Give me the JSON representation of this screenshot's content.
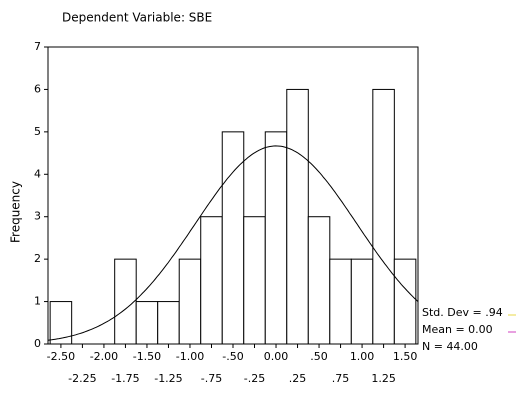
{
  "chart_data": {
    "type": "histogram",
    "title": "Dependent Variable: SBE",
    "ylabel": "Frequency",
    "bins": [
      -2.625,
      -2.375,
      -2.125,
      -1.875,
      -1.625,
      -1.375,
      -1.125,
      -0.875,
      -0.625,
      -0.375,
      -0.125,
      0.125,
      0.375,
      0.625,
      0.875,
      1.125,
      1.375,
      1.625
    ],
    "values": [
      1,
      0,
      0,
      2,
      1,
      1,
      2,
      3,
      5,
      3,
      5,
      6,
      3,
      2,
      2,
      6,
      2
    ],
    "color": "#ffffff",
    "xlim": [
      -2.65,
      1.65
    ],
    "ylim": [
      0,
      7
    ],
    "xticks": [
      {
        "value": -2.5,
        "label": "-2.50"
      },
      {
        "value": -2.25,
        "label": "-2.25"
      },
      {
        "value": -2.0,
        "label": "-2.00"
      },
      {
        "value": -1.75,
        "label": "-1.75"
      },
      {
        "value": -1.5,
        "label": "-1.50"
      },
      {
        "value": -1.25,
        "label": "-1.25"
      },
      {
        "value": -1.0,
        "label": "-1.00"
      },
      {
        "value": -0.75,
        "label": "-.75"
      },
      {
        "value": -0.5,
        "label": "-.50"
      },
      {
        "value": -0.25,
        "label": "-.25"
      },
      {
        "value": 0,
        "label": "0.00"
      },
      {
        "value": 0.25,
        "label": ".25"
      },
      {
        "value": 0.5,
        "label": ".50"
      },
      {
        "value": 0.75,
        "label": ".75"
      },
      {
        "value": 1.0,
        "label": "1.00"
      },
      {
        "value": 1.25,
        "label": "1.25"
      },
      {
        "value": 1.5,
        "label": "1.50"
      }
    ],
    "yticks": [
      0,
      1,
      2,
      3,
      4,
      5,
      6,
      7
    ],
    "grid": false,
    "normal_curve": {
      "mean": 0,
      "std_dev": 0.94,
      "n": 44,
      "labels": [
        "Std. Dev = .94",
        "Mean = 0.00",
        "N = 44.00"
      ]
    }
  }
}
